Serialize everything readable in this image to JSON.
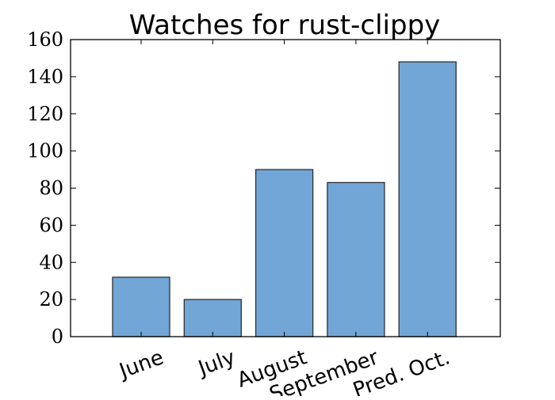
{
  "chart_data": {
    "type": "bar",
    "title": "Watches for rust-clippy",
    "xlabel": "",
    "ylabel": "",
    "categories": [
      "June",
      "July",
      "August",
      "September",
      "Pred. Oct."
    ],
    "values": [
      32,
      20,
      90,
      83,
      148
    ],
    "ylim": [
      0,
      160
    ],
    "yticks": [
      0,
      20,
      40,
      60,
      80,
      100,
      120,
      140,
      160
    ],
    "grid": false,
    "bar_color": "#72a6d6",
    "bar_edge_color": "#2b2f33"
  }
}
